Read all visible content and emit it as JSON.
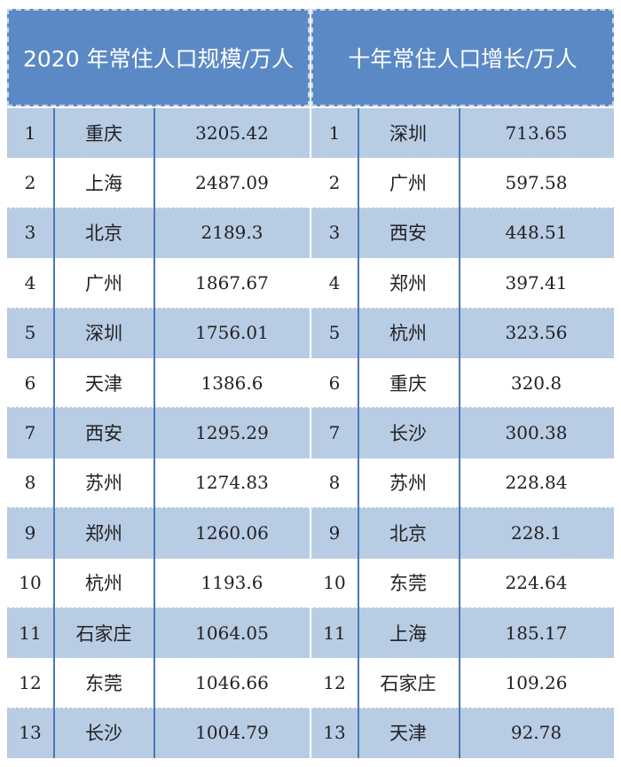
{
  "header": {
    "left_title": "2020 年常住人口规模/万人",
    "right_title": "十年常住人口增长/万人"
  },
  "left_table": [
    {
      "rank": "1",
      "city": "重庆",
      "value": "3205.42"
    },
    {
      "rank": "2",
      "city": "上海",
      "value": "2487.09"
    },
    {
      "rank": "3",
      "city": "北京",
      "value": "2189.3"
    },
    {
      "rank": "4",
      "city": "广州",
      "value": "1867.67"
    },
    {
      "rank": "5",
      "city": "深圳",
      "value": "1756.01"
    },
    {
      "rank": "6",
      "city": "天津",
      "value": "1386.6"
    },
    {
      "rank": "7",
      "city": "西安",
      "value": "1295.29"
    },
    {
      "rank": "8",
      "city": "苏州",
      "value": "1274.83"
    },
    {
      "rank": "9",
      "city": "郑州",
      "value": "1260.06"
    },
    {
      "rank": "10",
      "city": "杭州",
      "value": "1193.6"
    },
    {
      "rank": "11",
      "city": "石家庄",
      "value": "1064.05"
    },
    {
      "rank": "12",
      "city": "东莞",
      "value": "1046.66"
    },
    {
      "rank": "13",
      "city": "长沙",
      "value": "1004.79"
    }
  ],
  "right_table": [
    {
      "rank": "1",
      "city": "深圳",
      "value": "713.65"
    },
    {
      "rank": "2",
      "city": "广州",
      "value": "597.58"
    },
    {
      "rank": "3",
      "city": "西安",
      "value": "448.51"
    },
    {
      "rank": "4",
      "city": "郑州",
      "value": "397.41"
    },
    {
      "rank": "5",
      "city": "杭州",
      "value": "323.56"
    },
    {
      "rank": "6",
      "city": "重庆",
      "value": "320.8"
    },
    {
      "rank": "7",
      "city": "长沙",
      "value": "300.38"
    },
    {
      "rank": "8",
      "city": "苏州",
      "value": "228.84"
    },
    {
      "rank": "9",
      "city": "北京",
      "value": "228.1"
    },
    {
      "rank": "10",
      "city": "东莞",
      "value": "224.64"
    },
    {
      "rank": "11",
      "city": "上海",
      "value": "185.17"
    },
    {
      "rank": "12",
      "city": "石家庄",
      "value": "109.26"
    },
    {
      "rank": "13",
      "city": "天津",
      "value": "92.78"
    }
  ],
  "colors": {
    "header_bg": "#5b89c6",
    "row_shaded": "#b8cce4",
    "row_plain": "#ffffff",
    "grid_line": "#4a78b8"
  }
}
